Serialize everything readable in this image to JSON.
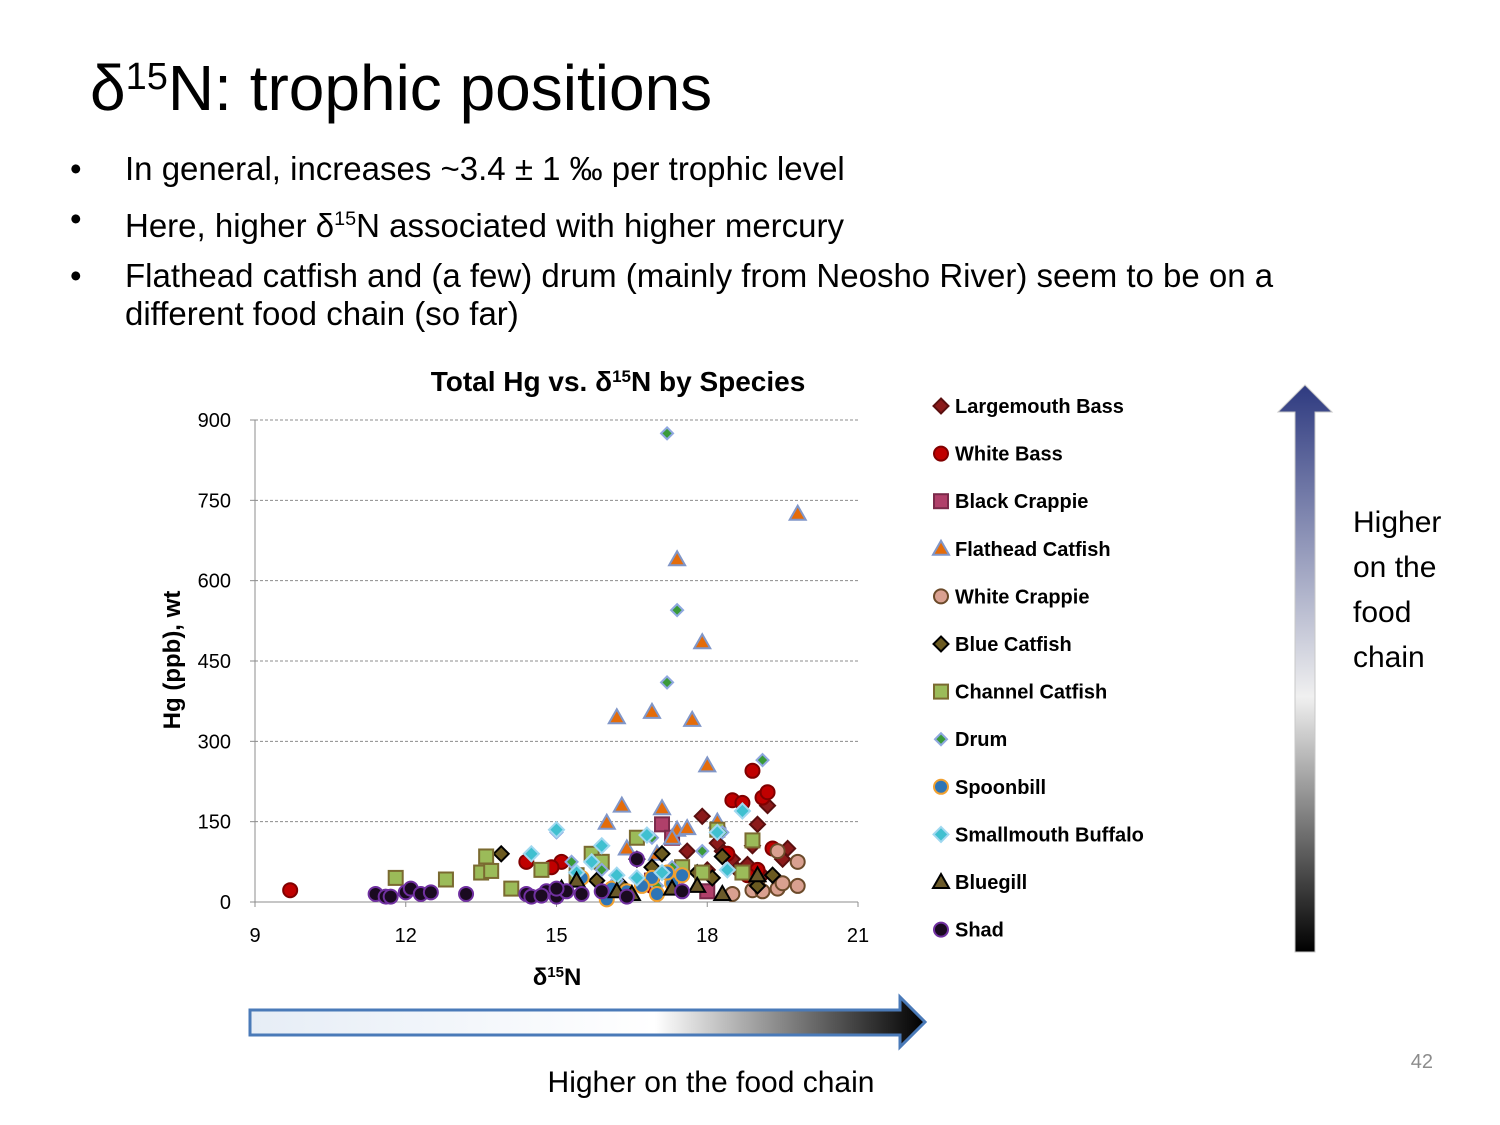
{
  "slide": {
    "title": {
      "pre": "δ",
      "sup": "15",
      "post": "N: trophic positions"
    },
    "bullets": [
      {
        "text": "In general, increases ~3.4 ± 1 ‰ per trophic level"
      },
      {
        "pre": "Here, higher δ",
        "sup": "15",
        "post": "N associated with higher mercury"
      },
      {
        "text": "Flathead catfish and (a few) drum (mainly from Neosho River) seem to be on a different food chain (so far)"
      }
    ],
    "vertical_arrow_label": "Higher on the food chain",
    "horizontal_arrow_label": "Higher on the food chain",
    "page_number": "42"
  },
  "chart_data": {
    "type": "scatter",
    "title": {
      "pre": "Total Hg vs. δ",
      "sup": "15",
      "post": "N by Species"
    },
    "x_label": {
      "pre": "δ",
      "sup": "15",
      "post": "N"
    },
    "y_label": "Hg (ppb), wt",
    "xlim": [
      9,
      21
    ],
    "xticks": [
      9,
      12,
      15,
      18,
      21
    ],
    "ylim": [
      0,
      900
    ],
    "yticks": [
      0,
      150,
      300,
      450,
      600,
      750,
      900
    ],
    "grid": true,
    "series": [
      {
        "name": "Largemouth Bass",
        "marker": "diamond",
        "color": "#8b1a1a",
        "stroke": "#5a0f0f",
        "x": [
          17.9,
          18.3,
          18.5,
          18.9,
          19.0,
          19.2,
          19.6,
          19.5,
          18.6,
          18.2,
          18.8,
          19.1,
          17.6,
          18.0
        ],
        "values": [
          160,
          95,
          80,
          105,
          145,
          180,
          100,
          80,
          60,
          110,
          70,
          50,
          95,
          60
        ]
      },
      {
        "name": "White Bass",
        "marker": "circle",
        "color": "#c00000",
        "stroke": "#800000",
        "x": [
          9.7,
          14.4,
          15.1,
          14.9,
          18.5,
          18.9,
          19.1,
          19.2,
          19.0,
          18.7,
          18.4,
          19.3,
          18.8,
          16.9
        ],
        "values": [
          22,
          75,
          75,
          65,
          190,
          245,
          195,
          205,
          60,
          185,
          90,
          100,
          50,
          30
        ]
      },
      {
        "name": "Black Crappie",
        "marker": "square",
        "color": "#b0406a",
        "stroke": "#7a2a4a",
        "x": [
          17.1,
          18.0,
          17.3,
          16.9
        ],
        "values": [
          145,
          20,
          120,
          40
        ]
      },
      {
        "name": "Flathead Catfish",
        "marker": "triangle",
        "color": "#e46c0a",
        "stroke": "#8096c8",
        "x": [
          16.2,
          16.9,
          17.7,
          17.4,
          17.9,
          19.8,
          18.0,
          16.3,
          17.1,
          16.0,
          17.4,
          17.6,
          17.3,
          18.2,
          16.4,
          17.0
        ],
        "values": [
          345,
          355,
          340,
          640,
          485,
          725,
          255,
          180,
          175,
          148,
          135,
          138,
          120,
          150,
          100,
          90
        ]
      },
      {
        "name": "White Crappie",
        "marker": "circle",
        "color": "#d9a090",
        "stroke": "#6b4a2a",
        "x": [
          19.8,
          19.4,
          19.8,
          19.4,
          18.9,
          19.1,
          18.5,
          19.5,
          19.0
        ],
        "values": [
          75,
          95,
          30,
          25,
          22,
          20,
          15,
          35,
          40
        ]
      },
      {
        "name": "Blue Catfish",
        "marker": "diamond",
        "color": "#6b5a20",
        "stroke": "#000000",
        "x": [
          13.9,
          16.6,
          17.1,
          18.3,
          19.3,
          16.9,
          17.8,
          18.1,
          19.0,
          15.8,
          16.3
        ],
        "values": [
          90,
          80,
          90,
          85,
          50,
          65,
          55,
          45,
          30,
          40,
          30
        ]
      },
      {
        "name": "Channel Catfish",
        "marker": "square",
        "color": "#9bbb59",
        "stroke": "#7a6a30",
        "x": [
          11.8,
          12.8,
          13.5,
          13.6,
          13.7,
          14.1,
          14.7,
          15.7,
          15.9,
          16.6,
          17.5,
          18.2,
          18.9,
          18.7,
          17.9,
          15.4
        ],
        "values": [
          45,
          42,
          55,
          85,
          58,
          25,
          60,
          90,
          75,
          120,
          65,
          135,
          115,
          55,
          55,
          50
        ]
      },
      {
        "name": "Drum",
        "marker": "small-diamond",
        "color": "#3a9a3a",
        "stroke": "#8fa8e0",
        "x": [
          17.2,
          17.4,
          17.2,
          19.1,
          15.0,
          14.5,
          16.2,
          17.3,
          16.9,
          17.9,
          15.9,
          17.0,
          18.3,
          15.3
        ],
        "values": [
          875,
          545,
          410,
          265,
          130,
          90,
          40,
          65,
          120,
          95,
          60,
          30,
          130,
          75
        ]
      },
      {
        "name": "Spoonbill",
        "marker": "circle",
        "color": "#2e75b6",
        "stroke": "#f0a030",
        "x": [
          16.0,
          16.4,
          16.9,
          17.0,
          17.3,
          17.5,
          16.7,
          15.5,
          16.1,
          17.2
        ],
        "values": [
          5,
          20,
          45,
          15,
          35,
          50,
          30,
          45,
          25,
          55
        ]
      },
      {
        "name": "Smallmouth Buffalo",
        "marker": "diamond",
        "color": "#40c0d0",
        "stroke": "#a0d8f0",
        "x": [
          15.0,
          15.9,
          14.5,
          16.2,
          15.7,
          16.8,
          18.2,
          18.7,
          17.1,
          18.4,
          15.4,
          16.6
        ],
        "values": [
          135,
          105,
          90,
          50,
          75,
          125,
          130,
          170,
          55,
          60,
          55,
          45
        ]
      },
      {
        "name": "Bluegill",
        "marker": "triangle",
        "color": "#6b5a2a",
        "stroke": "#000000",
        "x": [
          15.4,
          16.5,
          17.3,
          18.3,
          19.0,
          16.2,
          15.1,
          17.8
        ],
        "values": [
          40,
          15,
          25,
          15,
          50,
          20,
          25,
          30
        ]
      },
      {
        "name": "Shad",
        "marker": "circle",
        "color": "#1a0a20",
        "stroke": "#7030a0",
        "x": [
          11.4,
          11.6,
          11.7,
          12.0,
          12.1,
          12.3,
          12.5,
          13.2,
          14.4,
          14.5,
          14.8,
          15.0,
          15.2,
          15.5,
          15.9,
          16.6,
          16.4,
          17.5,
          15.0,
          14.7
        ],
        "values": [
          15,
          10,
          10,
          18,
          25,
          15,
          18,
          15,
          15,
          10,
          20,
          10,
          20,
          15,
          20,
          80,
          10,
          20,
          25,
          12
        ]
      }
    ]
  }
}
